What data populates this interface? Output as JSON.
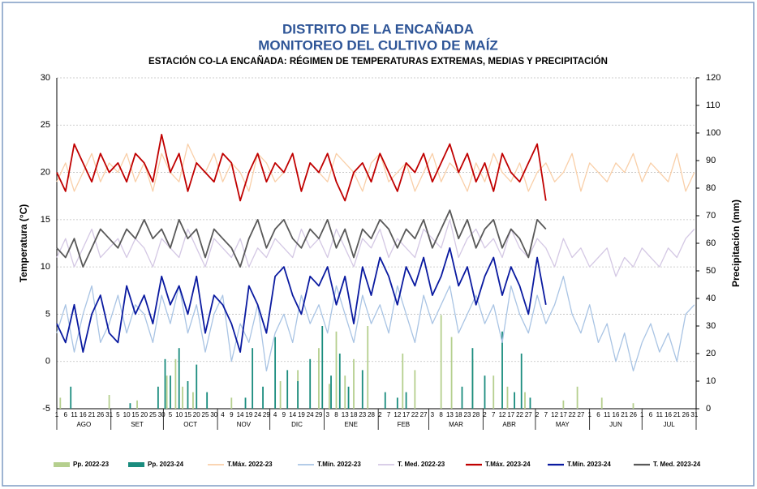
{
  "chart_data": {
    "type": "combo",
    "title": "DISTRITO DE LA ENCAÑADA",
    "subtitle": "MONITOREO DEL CULTIVO DE MAÍZ",
    "caption": "ESTACIÓN CO-LA ENCAÑADA: RÉGIMEN DE TEMPERATURAS EXTREMAS, MEDIAS Y PRECIPITACIÓN",
    "ylabel": "Temperatura (°C)",
    "y2label": "Precipitación (mm)",
    "ylim": [
      -5,
      30
    ],
    "yticks": [
      -5,
      0,
      5,
      10,
      15,
      20,
      25,
      30
    ],
    "y2lim": [
      0,
      120
    ],
    "y2ticks": [
      0,
      10,
      20,
      30,
      40,
      50,
      60,
      70,
      80,
      90,
      100,
      110,
      120
    ],
    "grid": true,
    "xlim": [
      0,
      366
    ],
    "xticks": [
      {
        "value": 0,
        "label": "1"
      },
      {
        "value": 5,
        "label": "6"
      },
      {
        "value": 10,
        "label": "11"
      },
      {
        "value": 15,
        "label": "16"
      },
      {
        "value": 20,
        "label": "21"
      },
      {
        "value": 25,
        "label": "26"
      },
      {
        "value": 30,
        "label": "31"
      },
      {
        "value": 35,
        "label": "5"
      },
      {
        "value": 40,
        "label": "10"
      },
      {
        "value": 45,
        "label": "15"
      },
      {
        "value": 50,
        "label": "20"
      },
      {
        "value": 55,
        "label": "25"
      },
      {
        "value": 60,
        "label": "30"
      },
      {
        "value": 65,
        "label": "5"
      },
      {
        "value": 70,
        "label": "10"
      },
      {
        "value": 75,
        "label": "15"
      },
      {
        "value": 80,
        "label": "20"
      },
      {
        "value": 85,
        "label": "25"
      },
      {
        "value": 90,
        "label": "30"
      },
      {
        "value": 95,
        "label": "4"
      },
      {
        "value": 100,
        "label": "9"
      },
      {
        "value": 105,
        "label": "14"
      },
      {
        "value": 110,
        "label": "19"
      },
      {
        "value": 115,
        "label": "24"
      },
      {
        "value": 120,
        "label": "29"
      },
      {
        "value": 125,
        "label": "4"
      },
      {
        "value": 130,
        "label": "9"
      },
      {
        "value": 135,
        "label": "14"
      },
      {
        "value": 140,
        "label": "19"
      },
      {
        "value": 145,
        "label": "24"
      },
      {
        "value": 150,
        "label": "29"
      },
      {
        "value": 155,
        "label": "3"
      },
      {
        "value": 160,
        "label": "8"
      },
      {
        "value": 165,
        "label": "13"
      },
      {
        "value": 170,
        "label": "18"
      },
      {
        "value": 175,
        "label": "23"
      },
      {
        "value": 180,
        "label": "28"
      },
      {
        "value": 185,
        "label": "2"
      },
      {
        "value": 190,
        "label": "7"
      },
      {
        "value": 195,
        "label": "12"
      },
      {
        "value": 200,
        "label": "17"
      },
      {
        "value": 205,
        "label": "22"
      },
      {
        "value": 210,
        "label": "27"
      },
      {
        "value": 215,
        "label": "3"
      },
      {
        "value": 220,
        "label": "8"
      },
      {
        "value": 225,
        "label": "13"
      },
      {
        "value": 230,
        "label": "18"
      },
      {
        "value": 235,
        "label": "23"
      },
      {
        "value": 240,
        "label": "28"
      },
      {
        "value": 245,
        "label": "2"
      },
      {
        "value": 250,
        "label": "7"
      },
      {
        "value": 255,
        "label": "12"
      },
      {
        "value": 260,
        "label": "17"
      },
      {
        "value": 265,
        "label": "22"
      },
      {
        "value": 270,
        "label": "27"
      },
      {
        "value": 275,
        "label": "2"
      },
      {
        "value": 280,
        "label": "7"
      },
      {
        "value": 285,
        "label": "12"
      },
      {
        "value": 290,
        "label": "17"
      },
      {
        "value": 295,
        "label": "22"
      },
      {
        "value": 300,
        "label": "27"
      },
      {
        "value": 305,
        "label": "1"
      },
      {
        "value": 310,
        "label": "6"
      },
      {
        "value": 315,
        "label": "11"
      },
      {
        "value": 320,
        "label": "16"
      },
      {
        "value": 325,
        "label": "21"
      },
      {
        "value": 330,
        "label": "26"
      },
      {
        "value": 335,
        "label": "1"
      },
      {
        "value": 340,
        "label": "6"
      },
      {
        "value": 345,
        "label": "11"
      },
      {
        "value": 350,
        "label": "16"
      },
      {
        "value": 355,
        "label": "21"
      },
      {
        "value": 360,
        "label": "26"
      },
      {
        "value": 365,
        "label": "31"
      }
    ],
    "month_ticks": [
      {
        "value": 0,
        "label": "AGO"
      },
      {
        "value": 31,
        "label": "SET"
      },
      {
        "value": 61,
        "label": "OCT"
      },
      {
        "value": 92,
        "label": "NOV"
      },
      {
        "value": 122,
        "label": "DIC"
      },
      {
        "value": 153,
        "label": "ENE"
      },
      {
        "value": 184,
        "label": "FEB"
      },
      {
        "value": 213,
        "label": "MAR"
      },
      {
        "value": 244,
        "label": "ABR"
      },
      {
        "value": 274,
        "label": "MAY"
      },
      {
        "value": 305,
        "label": "JUN"
      },
      {
        "value": 335,
        "label": "JUL"
      }
    ],
    "x": [
      0,
      5,
      10,
      15,
      20,
      25,
      30,
      35,
      40,
      45,
      50,
      55,
      60,
      65,
      70,
      75,
      80,
      85,
      90,
      95,
      100,
      105,
      110,
      115,
      120,
      125,
      130,
      135,
      140,
      145,
      150,
      155,
      160,
      165,
      170,
      175,
      180,
      185,
      190,
      195,
      200,
      205,
      210,
      215,
      220,
      225,
      230,
      235,
      240,
      245,
      250,
      255,
      260,
      265,
      270,
      275,
      280,
      285,
      290,
      295,
      300,
      305,
      310,
      315,
      320,
      325,
      330,
      335,
      340,
      345,
      350,
      355,
      360,
      365
    ],
    "series": [
      {
        "name": "Pp. 2022-23",
        "kind": "bar",
        "axis": "y2",
        "color": "#b5cf8e",
        "x": [
          2,
          30,
          46,
          63,
          68,
          72,
          78,
          100,
          128,
          138,
          150,
          156,
          160,
          165,
          170,
          178,
          198,
          205,
          220,
          226,
          238,
          250,
          258,
          268,
          290,
          298,
          312,
          330
        ],
        "values": [
          4,
          5,
          3,
          12,
          18,
          8,
          6,
          4,
          10,
          14,
          22,
          9,
          28,
          12,
          18,
          30,
          20,
          14,
          34,
          26,
          18,
          12,
          8,
          6,
          3,
          8,
          4,
          2
        ]
      },
      {
        "name": "Pp. 2023-24",
        "kind": "bar",
        "axis": "y2",
        "color": "#1a8c7e",
        "x": [
          8,
          42,
          58,
          62,
          65,
          70,
          75,
          80,
          86,
          108,
          112,
          118,
          125,
          132,
          138,
          145,
          152,
          157,
          162,
          167,
          175,
          188,
          195,
          200,
          232,
          238,
          245,
          255,
          262,
          266,
          271
        ],
        "values": [
          8,
          2,
          8,
          18,
          12,
          22,
          10,
          16,
          6,
          4,
          22,
          8,
          26,
          14,
          10,
          18,
          30,
          12,
          20,
          8,
          14,
          6,
          4,
          6,
          8,
          22,
          12,
          28,
          6,
          20,
          4
        ]
      },
      {
        "name": "T.Máx. 2022-23",
        "kind": "line",
        "color": "#f9cfa8",
        "width": 1.3,
        "values": [
          19,
          21,
          18,
          20,
          22,
          19,
          21,
          20,
          22,
          19,
          21,
          18,
          22,
          20,
          19,
          23,
          21,
          20,
          22,
          19,
          21,
          20,
          18,
          22,
          21,
          19,
          20,
          22,
          18,
          21,
          20,
          19,
          22,
          21,
          20,
          18,
          21,
          22,
          19,
          20,
          21,
          18,
          20,
          22,
          19,
          21,
          20,
          18,
          21,
          19,
          22,
          20,
          19,
          21,
          18,
          20,
          21,
          19,
          20,
          22,
          18,
          21,
          20,
          19,
          21,
          20,
          22,
          19,
          21,
          20,
          19,
          22,
          18,
          20
        ]
      },
      {
        "name": "T.Mín. 2022-23",
        "kind": "line",
        "color": "#a9c4e4",
        "width": 1.3,
        "values": [
          3,
          6,
          1,
          5,
          8,
          2,
          4,
          7,
          3,
          6,
          5,
          2,
          7,
          4,
          8,
          3,
          6,
          1,
          5,
          7,
          0,
          4,
          2,
          6,
          -1,
          3,
          5,
          2,
          7,
          4,
          6,
          3,
          8,
          5,
          2,
          7,
          4,
          6,
          3,
          8,
          5,
          2,
          7,
          4,
          6,
          8,
          3,
          5,
          7,
          4,
          6,
          2,
          8,
          5,
          3,
          7,
          4,
          6,
          9,
          5,
          3,
          6,
          2,
          4,
          0,
          3,
          -1,
          2,
          4,
          1,
          3,
          0,
          5,
          6
        ]
      },
      {
        "name": "T. Med. 2022-23",
        "kind": "line",
        "color": "#d4c8e4",
        "width": 1.3,
        "values": [
          11,
          13,
          10,
          12,
          14,
          11,
          12,
          13,
          11,
          13,
          12,
          10,
          13,
          12,
          11,
          14,
          12,
          10,
          13,
          12,
          11,
          13,
          10,
          12,
          11,
          13,
          12,
          11,
          14,
          12,
          13,
          11,
          14,
          12,
          10,
          13,
          12,
          14,
          11,
          13,
          12,
          11,
          14,
          13,
          12,
          15,
          11,
          13,
          14,
          12,
          13,
          11,
          14,
          12,
          11,
          13,
          12,
          10,
          13,
          11,
          12,
          10,
          11,
          12,
          9,
          11,
          10,
          12,
          11,
          10,
          12,
          11,
          13,
          14
        ]
      },
      {
        "name": "T.Máx. 2023-24",
        "kind": "line",
        "color": "#c00000",
        "width": 1.8,
        "values": [
          20,
          18,
          23,
          21,
          19,
          22,
          20,
          21,
          19,
          22,
          21,
          19,
          24,
          20,
          22,
          18,
          21,
          20,
          19,
          22,
          21,
          17,
          20,
          22,
          19,
          21,
          20,
          22,
          18,
          21,
          20,
          22,
          19,
          17,
          20,
          21,
          19,
          22,
          20,
          18,
          21,
          20,
          22,
          19,
          21,
          23,
          20,
          22,
          19,
          21,
          18,
          22,
          20,
          19,
          21,
          23,
          17,
          null,
          null,
          null,
          null,
          null,
          null,
          null,
          null,
          null,
          null,
          null,
          null,
          null,
          null,
          null,
          null,
          null
        ]
      },
      {
        "name": "T.Mín. 2023-24",
        "kind": "line",
        "color": "#0a1aa0",
        "width": 1.8,
        "values": [
          4,
          2,
          6,
          1,
          5,
          7,
          3,
          2,
          8,
          5,
          7,
          4,
          9,
          6,
          8,
          5,
          9,
          3,
          7,
          6,
          4,
          1,
          8,
          6,
          3,
          9,
          10,
          7,
          5,
          9,
          8,
          10,
          6,
          9,
          4,
          10,
          7,
          11,
          9,
          6,
          10,
          8,
          11,
          7,
          9,
          12,
          8,
          10,
          6,
          9,
          11,
          7,
          10,
          8,
          5,
          11,
          6,
          null,
          null,
          null,
          null,
          null,
          null,
          null,
          null,
          null,
          null,
          null,
          null,
          null,
          null,
          null,
          null,
          null
        ]
      },
      {
        "name": "T. Med. 2023-24",
        "kind": "line",
        "color": "#595959",
        "width": 1.8,
        "values": [
          12,
          11,
          13,
          10,
          12,
          14,
          13,
          12,
          14,
          13,
          15,
          13,
          14,
          12,
          15,
          13,
          14,
          11,
          14,
          13,
          12,
          10,
          13,
          15,
          12,
          14,
          15,
          13,
          12,
          14,
          13,
          15,
          12,
          14,
          11,
          14,
          13,
          15,
          14,
          12,
          14,
          13,
          15,
          12,
          14,
          16,
          13,
          15,
          12,
          14,
          15,
          12,
          14,
          13,
          11,
          15,
          14,
          null,
          null,
          null,
          null,
          null,
          null,
          null,
          null,
          null,
          null,
          null,
          null,
          null,
          null,
          null,
          null,
          null
        ]
      }
    ]
  }
}
